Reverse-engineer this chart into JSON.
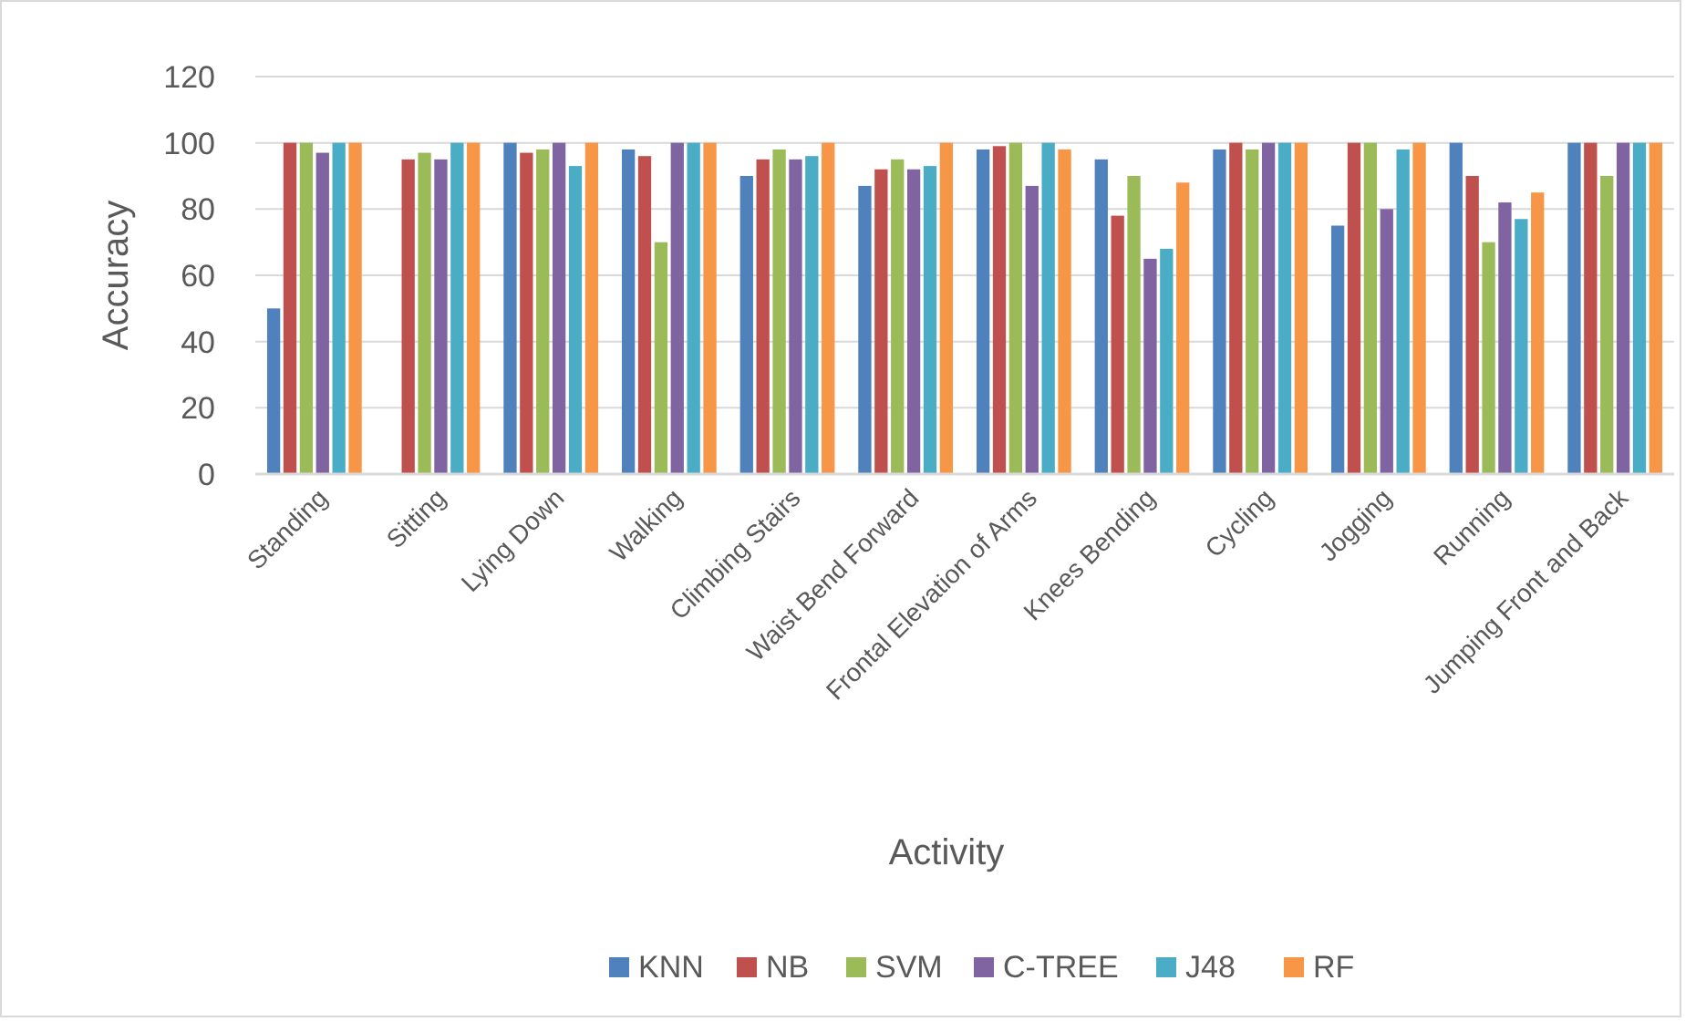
{
  "chart_data": {
    "type": "bar",
    "xlabel": "Activity",
    "ylabel": "Accuracy",
    "categories": [
      "Standing",
      "Sitting",
      "Lying Down",
      "Walking",
      "Climbing Stairs",
      "Waist Bend Forward",
      "Frontal Elevation of Arms",
      "Knees Bending",
      "Cycling",
      "Jogging",
      "Running",
      "Jumping Front and Back"
    ],
    "series": [
      {
        "name": "KNN",
        "color": "#4f81bd",
        "values": [
          50,
          null,
          100,
          98,
          90,
          87,
          98,
          95,
          98,
          75,
          100,
          100
        ]
      },
      {
        "name": "NB",
        "color": "#c0504d",
        "values": [
          100,
          95,
          97,
          96,
          95,
          92,
          99,
          78,
          100,
          100,
          90,
          100
        ]
      },
      {
        "name": "SVM",
        "color": "#9bbb59",
        "values": [
          100,
          97,
          98,
          70,
          98,
          95,
          100,
          90,
          98,
          100,
          70,
          90
        ]
      },
      {
        "name": "C-TREE",
        "color": "#8064a2",
        "values": [
          97,
          95,
          100,
          100,
          95,
          92,
          87,
          65,
          100,
          80,
          82,
          100
        ]
      },
      {
        "name": "J48",
        "color": "#4bacc6",
        "values": [
          100,
          100,
          93,
          100,
          96,
          93,
          100,
          68,
          100,
          98,
          77,
          100
        ]
      },
      {
        "name": "RF",
        "color": "#f79646",
        "values": [
          100,
          100,
          100,
          100,
          100,
          100,
          98,
          88,
          100,
          100,
          85,
          100
        ]
      }
    ],
    "ylim": [
      0,
      120
    ],
    "yticks": [
      0,
      20,
      40,
      60,
      80,
      100,
      120
    ],
    "grid": "y",
    "legend": "bottom"
  }
}
